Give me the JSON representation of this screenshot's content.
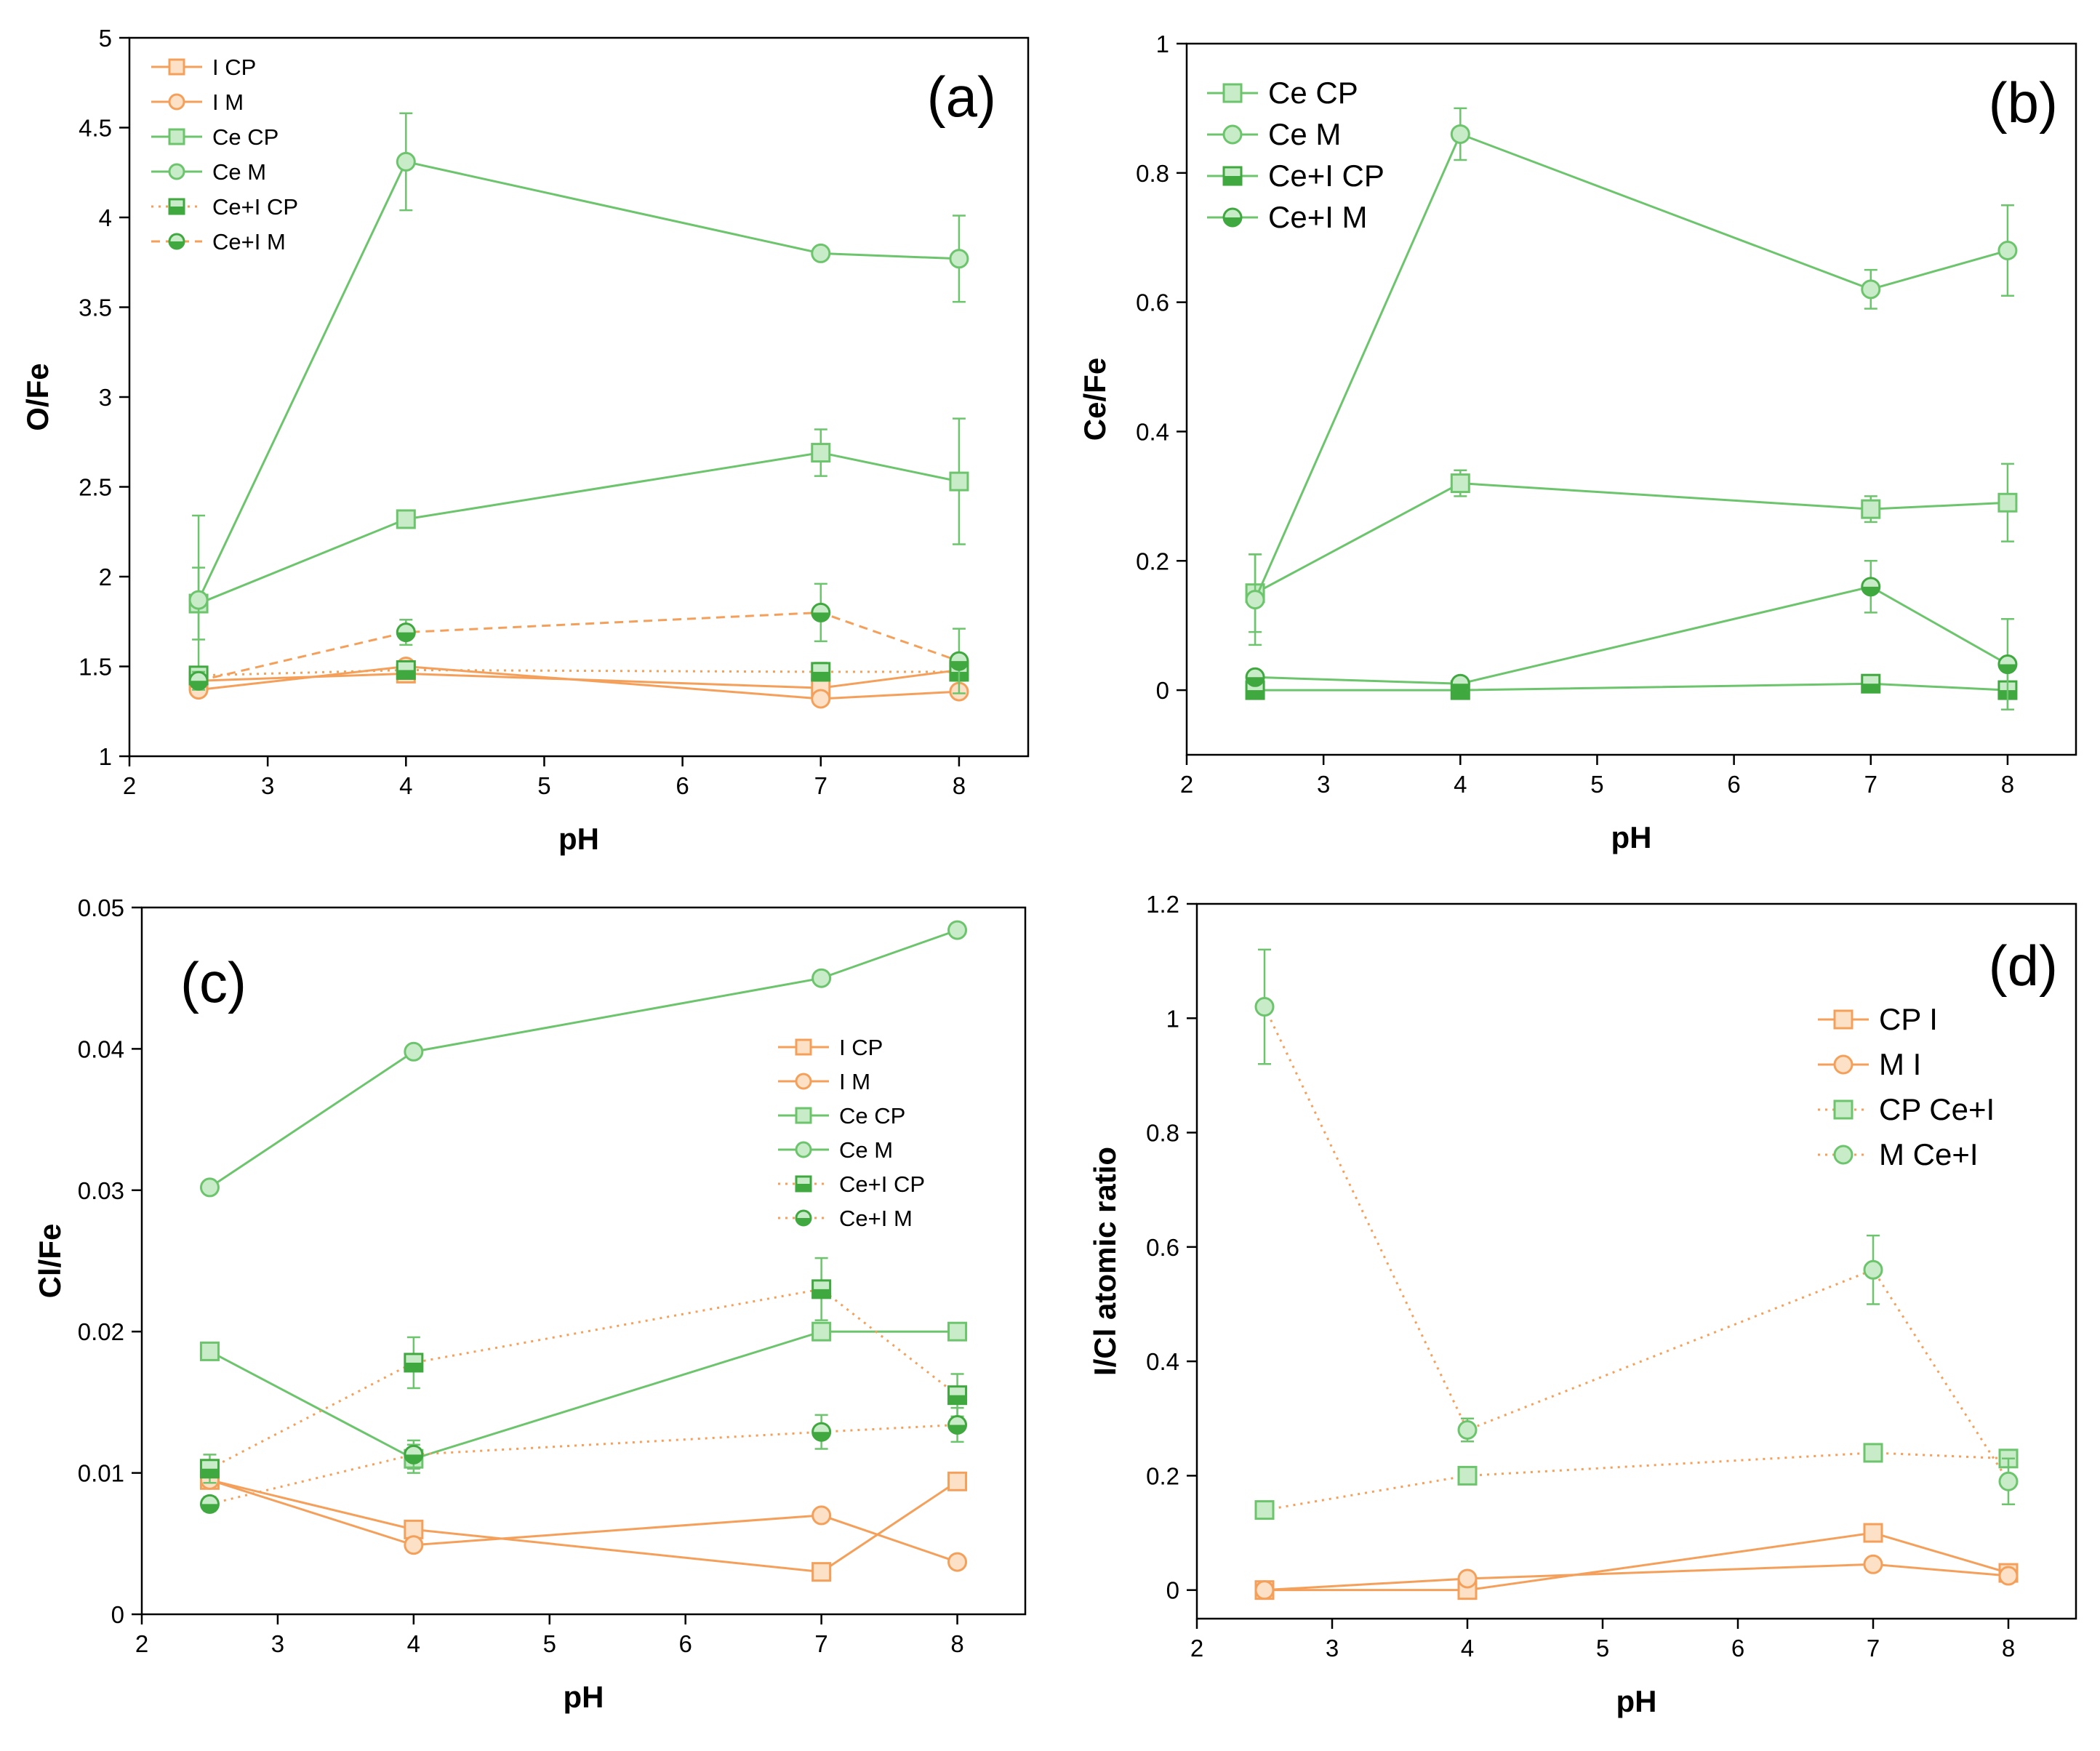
{
  "colors": {
    "orange": "#F5A05A",
    "green": "#6CC56C",
    "green_fill": "#C8EBC8",
    "orange_fill": "#FDE1C6",
    "green_dark": "#3FA83F",
    "axis": "#000000"
  },
  "chart_data": [
    {
      "id": "a",
      "type": "line",
      "panel_label": "(a)",
      "xlabel": "pH",
      "ylabel": "O/Fe",
      "xlim": [
        2,
        8.5
      ],
      "ylim": [
        1,
        5
      ],
      "xticks": [
        "2",
        "3",
        "4",
        "5",
        "6",
        "7",
        "8"
      ],
      "yticks": [
        "1",
        "1.5",
        "2",
        "2.5",
        "3",
        "3.5",
        "4",
        "4.5",
        "5"
      ],
      "legend_position": "top-left",
      "x": [
        2.5,
        4,
        7,
        8
      ],
      "series": [
        {
          "name": "I CP",
          "color": "orange",
          "line": "solid",
          "marker": "square-open",
          "values": [
            1.42,
            1.46,
            1.38,
            1.48
          ],
          "err": [
            0,
            0,
            0,
            0
          ]
        },
        {
          "name": "I M",
          "color": "orange",
          "line": "solid",
          "marker": "circle-open",
          "values": [
            1.37,
            1.5,
            1.32,
            1.36
          ],
          "err": [
            0,
            0,
            0,
            0
          ]
        },
        {
          "name": "Ce CP",
          "color": "green",
          "line": "solid",
          "marker": "square-open",
          "values": [
            1.85,
            2.32,
            2.69,
            2.53
          ],
          "err": [
            0.2,
            0.03,
            0.13,
            0.35
          ]
        },
        {
          "name": "Ce M",
          "color": "green",
          "line": "solid",
          "marker": "circle-open",
          "values": [
            1.87,
            4.31,
            3.8,
            3.77
          ],
          "err": [
            0.47,
            0.27,
            0.02,
            0.24
          ]
        },
        {
          "name": "Ce+I CP",
          "color": "orange",
          "line": "dotted",
          "marker": "square-half",
          "values": [
            1.45,
            1.48,
            1.47,
            1.47
          ],
          "err": [
            0.03,
            0.04,
            0.05,
            0.05
          ]
        },
        {
          "name": "Ce+I M",
          "color": "orange",
          "line": "dashed",
          "marker": "circle-half",
          "values": [
            1.42,
            1.69,
            1.8,
            1.53
          ],
          "err": [
            0.05,
            0.07,
            0.16,
            0.18
          ]
        }
      ]
    },
    {
      "id": "b",
      "type": "line",
      "panel_label": "(b)",
      "xlabel": "pH",
      "ylabel": "Ce/Fe",
      "xlim": [
        2,
        8.5
      ],
      "ylim": [
        -0.1,
        1
      ],
      "xticks": [
        "2",
        "3",
        "4",
        "5",
        "6",
        "7",
        "8"
      ],
      "yticks": [
        "0",
        "0.2",
        "0.4",
        "0.6",
        "0.8",
        "1"
      ],
      "legend_position": "top-left",
      "x": [
        2.5,
        4,
        7,
        8
      ],
      "series": [
        {
          "name": "Ce CP",
          "color": "green",
          "line": "solid",
          "marker": "square-open",
          "values": [
            0.15,
            0.32,
            0.28,
            0.29
          ],
          "err": [
            0.06,
            0.02,
            0.02,
            0.06
          ]
        },
        {
          "name": "Ce M",
          "color": "green",
          "line": "solid",
          "marker": "circle-open",
          "values": [
            0.14,
            0.86,
            0.62,
            0.68
          ],
          "err": [
            0.07,
            0.04,
            0.03,
            0.07
          ]
        },
        {
          "name": "Ce+I CP",
          "color": "green",
          "line": "solid",
          "marker": "square-half",
          "values": [
            0.0,
            0.0,
            0.01,
            0.0
          ],
          "err": [
            0.01,
            0.01,
            0.01,
            0.03
          ]
        },
        {
          "name": "Ce+I M",
          "color": "green",
          "line": "solid",
          "marker": "circle-half",
          "values": [
            0.02,
            0.01,
            0.16,
            0.04
          ],
          "err": [
            0.01,
            0.01,
            0.04,
            0.07
          ]
        }
      ]
    },
    {
      "id": "c",
      "type": "line",
      "panel_label": "(c)",
      "xlabel": "pH",
      "ylabel": "Cl/Fe",
      "xlim": [
        2,
        8.5
      ],
      "ylim": [
        0,
        0.05
      ],
      "xticks": [
        "2",
        "3",
        "4",
        "5",
        "6",
        "7",
        "8"
      ],
      "yticks": [
        "0",
        "0.01",
        "0.02",
        "0.03",
        "0.04",
        "0.05"
      ],
      "legend_position": "center-right",
      "x": [
        2.5,
        4,
        7,
        8
      ],
      "series": [
        {
          "name": "I CP",
          "color": "orange",
          "line": "solid",
          "marker": "square-open",
          "values": [
            0.0095,
            0.006,
            0.003,
            0.0094
          ],
          "err": [
            0,
            0,
            0,
            0
          ]
        },
        {
          "name": "I M",
          "color": "orange",
          "line": "solid",
          "marker": "circle-open",
          "values": [
            0.0095,
            0.0049,
            0.007,
            0.0037
          ],
          "err": [
            0,
            0,
            0,
            0
          ]
        },
        {
          "name": "Ce CP",
          "color": "green",
          "line": "solid",
          "marker": "square-open",
          "values": [
            0.0186,
            0.011,
            0.02,
            0.02
          ],
          "err": [
            0,
            0.001,
            0,
            0
          ]
        },
        {
          "name": "Ce M",
          "color": "green",
          "line": "solid",
          "marker": "circle-open",
          "values": [
            0.0302,
            0.0398,
            0.045,
            0.0484
          ],
          "err": [
            0,
            0,
            0,
            0
          ]
        },
        {
          "name": "Ce+I CP",
          "color": "orange",
          "line": "dotted",
          "marker": "square-half",
          "values": [
            0.0103,
            0.0178,
            0.023,
            0.0155
          ],
          "err": [
            0.001,
            0.0018,
            0.0022,
            0.0015
          ]
        },
        {
          "name": "Ce+I M",
          "color": "orange",
          "line": "dotted",
          "marker": "circle-half",
          "values": [
            0.0078,
            0.0113,
            0.0129,
            0.0134
          ],
          "err": [
            0.0005,
            0.001,
            0.0012,
            0.0012
          ]
        }
      ]
    },
    {
      "id": "d",
      "type": "line",
      "panel_label": "(d)",
      "xlabel": "pH",
      "ylabel": "I/Cl atomic ratio",
      "xlim": [
        2,
        8.5
      ],
      "ylim": [
        -0.05,
        1.2
      ],
      "xticks": [
        "2",
        "3",
        "4",
        "5",
        "6",
        "7",
        "8"
      ],
      "yticks": [
        "0",
        "0.2",
        "0.4",
        "0.6",
        "0.8",
        "1",
        "1.2"
      ],
      "legend_position": "top-right",
      "x": [
        2.5,
        4,
        7,
        8
      ],
      "series": [
        {
          "name": "CP I",
          "color": "orange",
          "line": "solid",
          "marker": "square-open",
          "values": [
            0.0,
            0.0,
            0.1,
            0.03
          ],
          "err": [
            0,
            0,
            0,
            0
          ]
        },
        {
          "name": "M I",
          "color": "orange",
          "line": "solid",
          "marker": "circle-open",
          "values": [
            0.0,
            0.02,
            0.045,
            0.025
          ],
          "err": [
            0,
            0,
            0,
            0
          ]
        },
        {
          "name": "CP Ce+I",
          "color": "orange",
          "line": "dotted",
          "marker": "square-open-green",
          "values": [
            0.14,
            0.2,
            0.24,
            0.23
          ],
          "err": [
            0,
            0,
            0,
            0
          ]
        },
        {
          "name": "M Ce+I",
          "color": "orange",
          "line": "dotted",
          "marker": "circle-open-green",
          "values": [
            1.02,
            0.28,
            0.56,
            0.19
          ],
          "err": [
            0.1,
            0.02,
            0.06,
            0.04
          ]
        }
      ]
    }
  ]
}
